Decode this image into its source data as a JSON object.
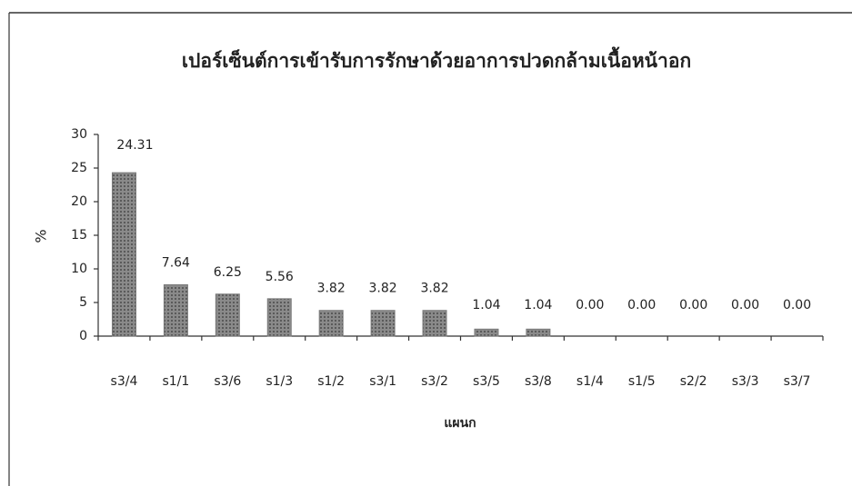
{
  "chart_data": {
    "type": "bar",
    "title": "เปอร์เซ็นต์การเข้ารับการรักษาด้วยอาการปวดกล้ามเนื้อหน้าอก",
    "x_label": "แผนก",
    "y_label": "%",
    "categories": [
      "s3/4",
      "s1/1",
      "s3/6",
      "s1/3",
      "s1/2",
      "s3/1",
      "s3/2",
      "s3/5",
      "s3/8",
      "s1/4",
      "s1/5",
      "s2/2",
      "s3/3",
      "s3/7"
    ],
    "values": [
      24.31,
      7.64,
      6.25,
      5.56,
      3.82,
      3.82,
      3.82,
      1.04,
      1.04,
      0,
      0,
      0,
      0,
      0
    ],
    "value_labels": [
      "24.31",
      "7.64",
      "6.25",
      "5.56",
      "3.82",
      "3.82",
      "3.82",
      "1.04",
      "1.04",
      "0.00",
      "0.00",
      "0.00",
      "0.00",
      "0.00"
    ],
    "color": "#7a7a7a",
    "ylim": [
      0,
      30
    ],
    "yticks": [
      0,
      5,
      10,
      15,
      20,
      25,
      30
    ],
    "grid": false
  }
}
